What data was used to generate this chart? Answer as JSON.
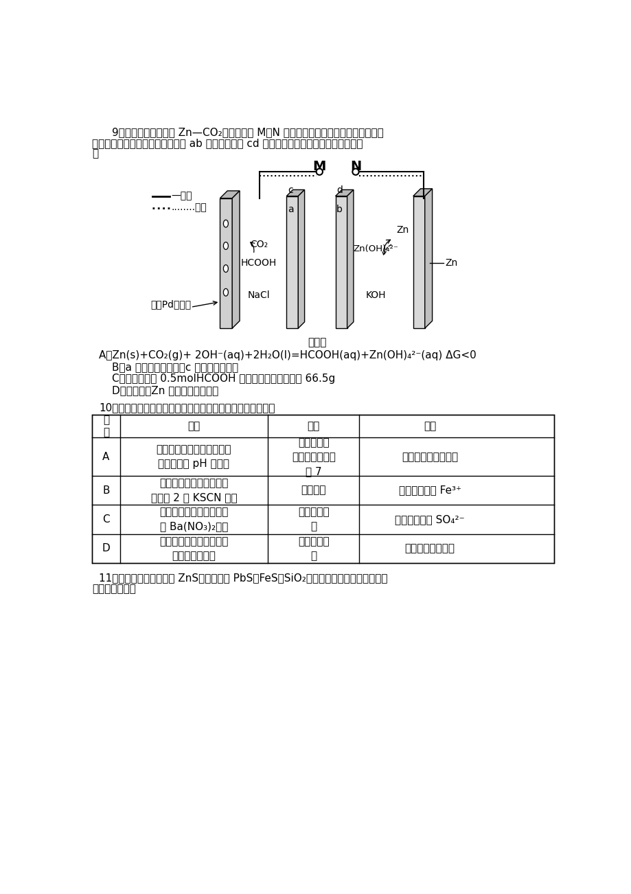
{
  "bg_color": "#ffffff",
  "text_color": "#000000",
  "q9_text1": "9．一种新型水系可逆 Zn—CO₂电池，其中 M、N 连接负载或直流电源，两个双极膜反",
  "q9_text2": "向放置并分隔正、负极室，放电时 ab 工作、充电时 cd 工作。如图所示。下列说法中错误的",
  "q9_text3": "是",
  "legend_discharge": "—放电",
  "legend_charge": "........充电",
  "diagram_label_M": "M",
  "diagram_label_N": "N",
  "diagram_co2": "CO₂",
  "diagram_hcooh": "HCOOH",
  "diagram_nacl": "NaCl",
  "diagram_znoh": "Zn(OH)₄²⁻",
  "diagram_zn1": "Zn",
  "diagram_koh": "KOH",
  "diagram_zn2": "Zn",
  "diagram_pd": "多孔Pd纳米片",
  "diagram_bipolar": "双极膜",
  "optA": "A．Zn(s)+CO₂(g)+ 2OH⁻(aq)+2H₂O(l)=HCOOH(aq)+Zn(OH)₄²⁻(aq) ΔG<0",
  "optB": "B．a 为阳离子交换膜，c 为阴离子交换膜",
  "optC": "C．当左室合成 0.5molHCOOH 时，右室溶液质量变化 66.5g",
  "optD": "D．充电时，Zn 极处发生还原反应",
  "q10_text": "10．下列实验操做、现象及相应结论均正确且有因果关系的是",
  "table_header": [
    "选\n项",
    "实验",
    "现象",
    "结论"
  ],
  "table_rowA_exp": "用玻璃棒蘸取醋酸钠溶液，\n点在湿润的 pH 试纸上",
  "table_rowA_phe": "试纸显色后\n与比色卡对照接\n近 7",
  "table_rowA_con": "该醋酸钠溶液呈中性",
  "table_rowB_exp": "向某溶液中加入少许氯水\n后再加 2 滴 KSCN 溶液",
  "table_rowB_phe": "溶液变红",
  "table_rowB_con": "原溶液中含有 Fe³⁺",
  "table_rowC_exp": "向某溶液中滴入盐酸酸化\n的 Ba(NO₃)₂溶液",
  "table_rowC_phe": "产生白色沉\n淀",
  "table_rowC_con": "原溶液中含有 SO₄²⁻",
  "table_rowD_exp": "某气体分别通入溴水和酸\n性高锰酸钾溶液",
  "table_rowD_phe": "两溶液均褪\n色",
  "table_rowD_con": "该气体可能是乙烯",
  "q11_text1": "11．某锌矿的主要成分为 ZnS（还含少量 PbS、FeS、SiO₂），以其为原料冶炼锌的工艺",
  "q11_text2": "流程如图所示："
}
